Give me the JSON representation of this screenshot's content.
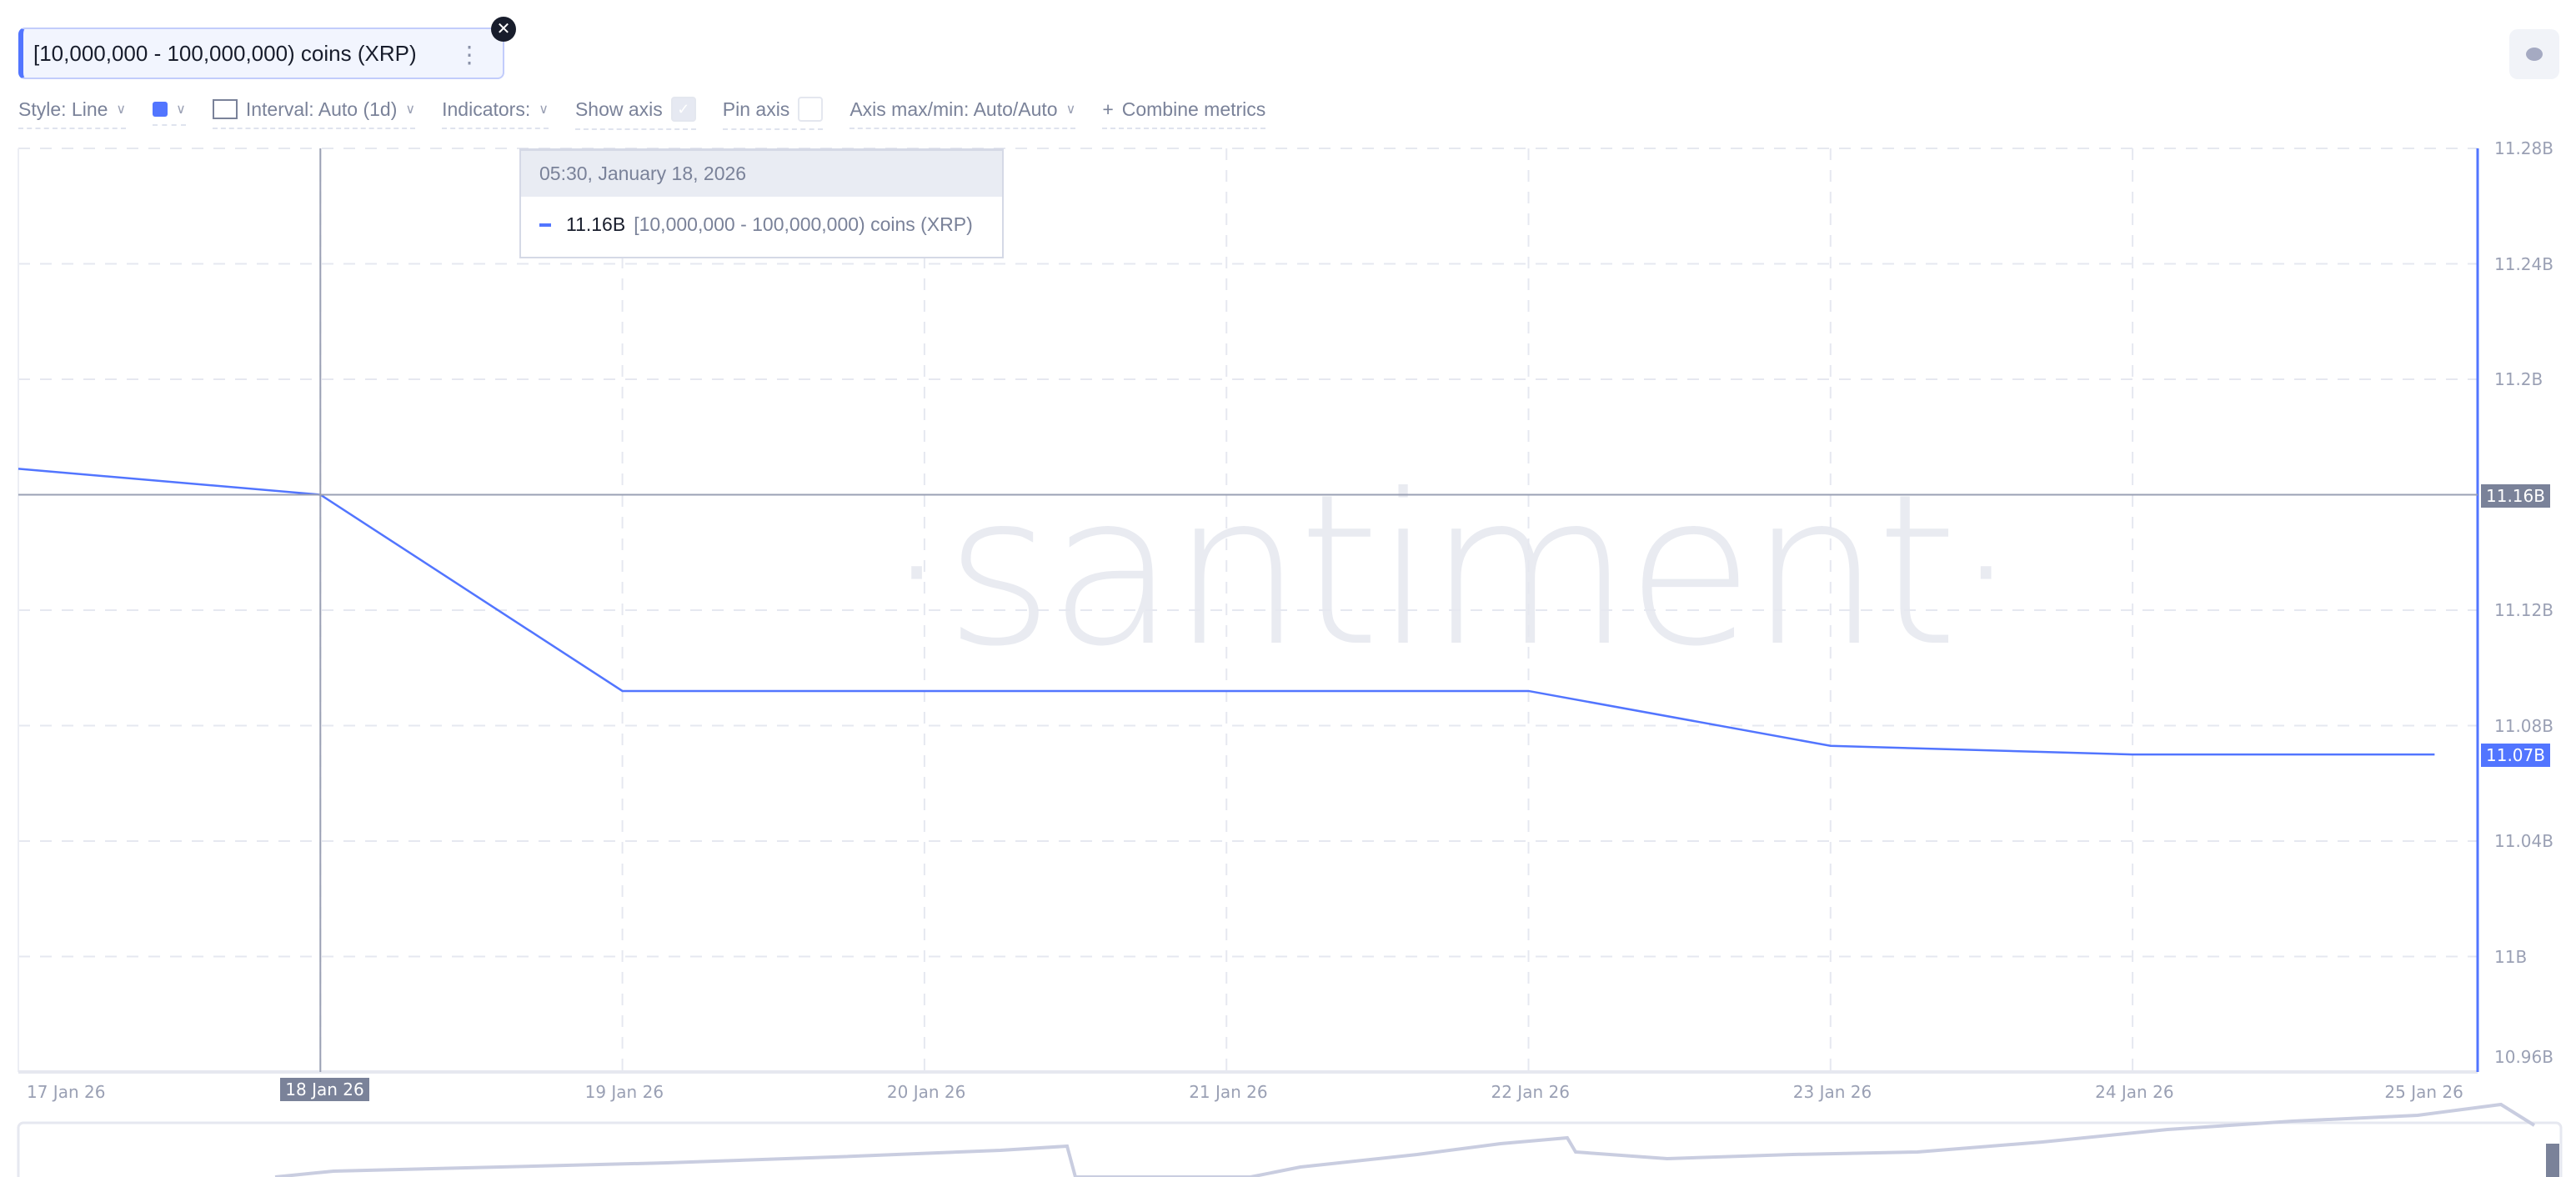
{
  "metric_chip": {
    "label": "[10,000,000 - 100,000,000) coins (XRP)"
  },
  "toolbar": {
    "style": "Style: Line",
    "interval": "Interval: Auto (1d)",
    "indicators": "Indicators:",
    "show_axis": "Show axis",
    "show_axis_checked": true,
    "pin_axis": "Pin axis",
    "pin_axis_checked": false,
    "axis_maxmin": "Axis max/min: Auto/Auto",
    "combine": "Combine metrics",
    "color": "#5275ff"
  },
  "tooltip": {
    "date": "05:30, January 18, 2026",
    "value": "11.16B",
    "series": "[10,000,000 - 100,000,000) coins (XRP)"
  },
  "watermark": "·santiment·",
  "crosshair": {
    "x_label": "18 Jan 26",
    "y_label": "11.16B"
  },
  "last_value_label": "11.07B",
  "chart_data": {
    "type": "line",
    "x": [
      "17 Jan 26",
      "18 Jan 26",
      "19 Jan 26",
      "20 Jan 26",
      "21 Jan 26",
      "22 Jan 26",
      "23 Jan 26",
      "24 Jan 26",
      "25 Jan 26"
    ],
    "series": [
      {
        "name": "[10,000,000 - 100,000,000) coins (XRP)",
        "values": [
          11.169,
          11.16,
          11.092,
          11.092,
          11.092,
          11.092,
          11.073,
          11.07,
          11.07
        ],
        "color": "#5275ff"
      }
    ],
    "y_ticks": [
      "11.28B",
      "11.24B",
      "11.2B",
      "11.16B",
      "11.12B",
      "11.08B",
      "11.04B",
      "11B",
      "10.96B"
    ],
    "ylim": [
      10.96,
      11.28
    ],
    "y_unit": "B",
    "grid": true,
    "y_axis_side": "right"
  }
}
